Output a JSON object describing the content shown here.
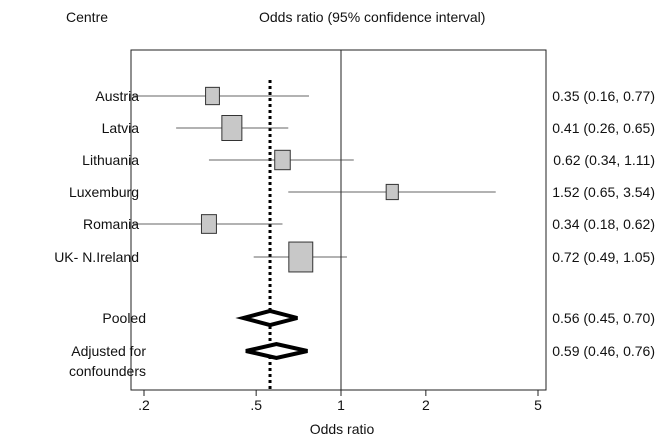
{
  "header": {
    "left": "Centre",
    "right": "Odds ratio (95% confidence interval)"
  },
  "chart_data": {
    "type": "forest",
    "xlabel": "Odds ratio",
    "x_scale": "log",
    "xlim": [
      0.19,
      5.5
    ],
    "x_ticks": [
      0.2,
      0.5,
      1,
      2,
      5
    ],
    "x_tick_labels": [
      ".2",
      ".5",
      "1",
      "2",
      "5"
    ],
    "reference_line": 1,
    "pooled_line": 0.56,
    "studies": [
      {
        "label": "Austria",
        "or": 0.35,
        "lower": 0.16,
        "upper": 0.77,
        "ci_text": "0.35 (0.16, 0.77)",
        "weight": 0.45
      },
      {
        "label": "Latvia",
        "or": 0.41,
        "lower": 0.26,
        "upper": 0.65,
        "ci_text": "0.41 (0.26, 0.65)",
        "weight": 1.0
      },
      {
        "label": "Lithuania",
        "or": 0.62,
        "lower": 0.34,
        "upper": 1.11,
        "ci_text": "0.62 (0.34, 1.11)",
        "weight": 0.6
      },
      {
        "label": "Luxemburg",
        "or": 1.52,
        "lower": 0.65,
        "upper": 3.54,
        "ci_text": "1.52 (0.65, 3.54)",
        "weight": 0.3
      },
      {
        "label": "Romania",
        "or": 0.34,
        "lower": 0.18,
        "upper": 0.62,
        "ci_text": "0.34 (0.18, 0.62)",
        "weight": 0.55
      },
      {
        "label": "UK- N.Ireland",
        "or": 0.72,
        "lower": 0.49,
        "upper": 1.05,
        "ci_text": "0.72 (0.49, 1.05)",
        "weight": 1.35
      }
    ],
    "summaries": [
      {
        "label": [
          "Pooled"
        ],
        "or": 0.56,
        "lower": 0.45,
        "upper": 0.7,
        "ci_text": "0.56 (0.45, 0.70)"
      },
      {
        "label": [
          "Adjusted for",
          "confounders"
        ],
        "or": 0.59,
        "lower": 0.46,
        "upper": 0.76,
        "ci_text": "0.59 (0.46, 0.76)"
      }
    ]
  }
}
